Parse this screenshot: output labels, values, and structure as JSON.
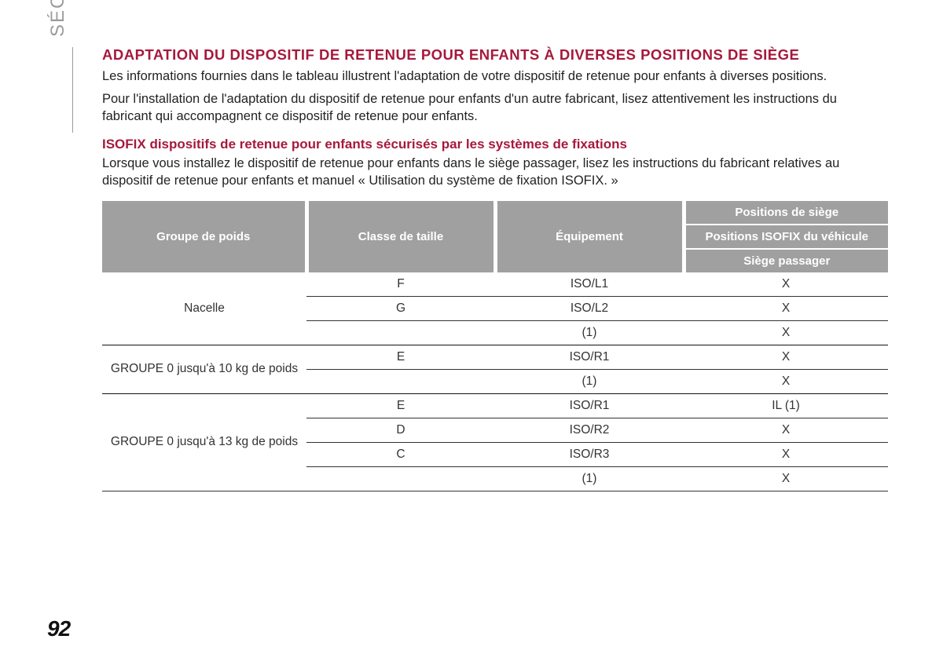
{
  "sideLabel": "SÉCURITÉ",
  "pageNumber": "92",
  "title": "ADAPTATION DU DISPOSITIF DE RETENUE POUR ENFANTS À DIVERSES POSITIONS DE SIÈGE",
  "paragraph1": "Les informations fournies dans le tableau illustrent l'adaptation de votre dispositif de retenue pour enfants à diverses positions.",
  "paragraph2": "Pour l'installation de l'adaptation du dispositif de retenue pour enfants d'un autre fabricant, lisez attentivement les instructions du fabricant qui accompagnent ce dispositif de retenue pour enfants.",
  "subTitle": "ISOFIX dispositifs de retenue pour enfants sécurisés par les systèmes de fixations",
  "paragraph3": "Lorsque vous installez le dispositif de retenue pour enfants dans le siège passager, lisez les instructions du fabricant relatives au dispositif de retenue pour enfants et manuel « Utilisation du système de fixation ISOFIX. »",
  "table": {
    "columns": [
      "Groupe de poids",
      "Classe de taille",
      "Équipement"
    ],
    "stackedCol": {
      "top": "Positions de siège",
      "mid": "Positions ISOFIX du véhicule",
      "bottom": "Siège passager"
    },
    "header_bg": "#a0a0a0",
    "header_fg": "#ffffff",
    "groups": [
      {
        "label": "Nacelle",
        "rows": [
          {
            "classe": "F",
            "equip": "ISO/L1",
            "pos": "X"
          },
          {
            "classe": "G",
            "equip": "ISO/L2",
            "pos": "X"
          },
          {
            "classe": "",
            "equip": "(1)",
            "pos": "X"
          }
        ]
      },
      {
        "label": "GROUPE 0 jusqu'à 10 kg de poids",
        "rows": [
          {
            "classe": "E",
            "equip": "ISO/R1",
            "pos": "X"
          },
          {
            "classe": "",
            "equip": "(1)",
            "pos": "X"
          }
        ]
      },
      {
        "label": "GROUPE 0 jusqu'à 13 kg de poids",
        "rows": [
          {
            "classe": "E",
            "equip": "ISO/R1",
            "pos": "IL (1)"
          },
          {
            "classe": "D",
            "equip": "ISO/R2",
            "pos": "X"
          },
          {
            "classe": "C",
            "equip": "ISO/R3",
            "pos": "X"
          },
          {
            "classe": "",
            "equip": "(1)",
            "pos": "X"
          }
        ]
      }
    ],
    "col_widths_pct": [
      26,
      24,
      24,
      26
    ]
  }
}
